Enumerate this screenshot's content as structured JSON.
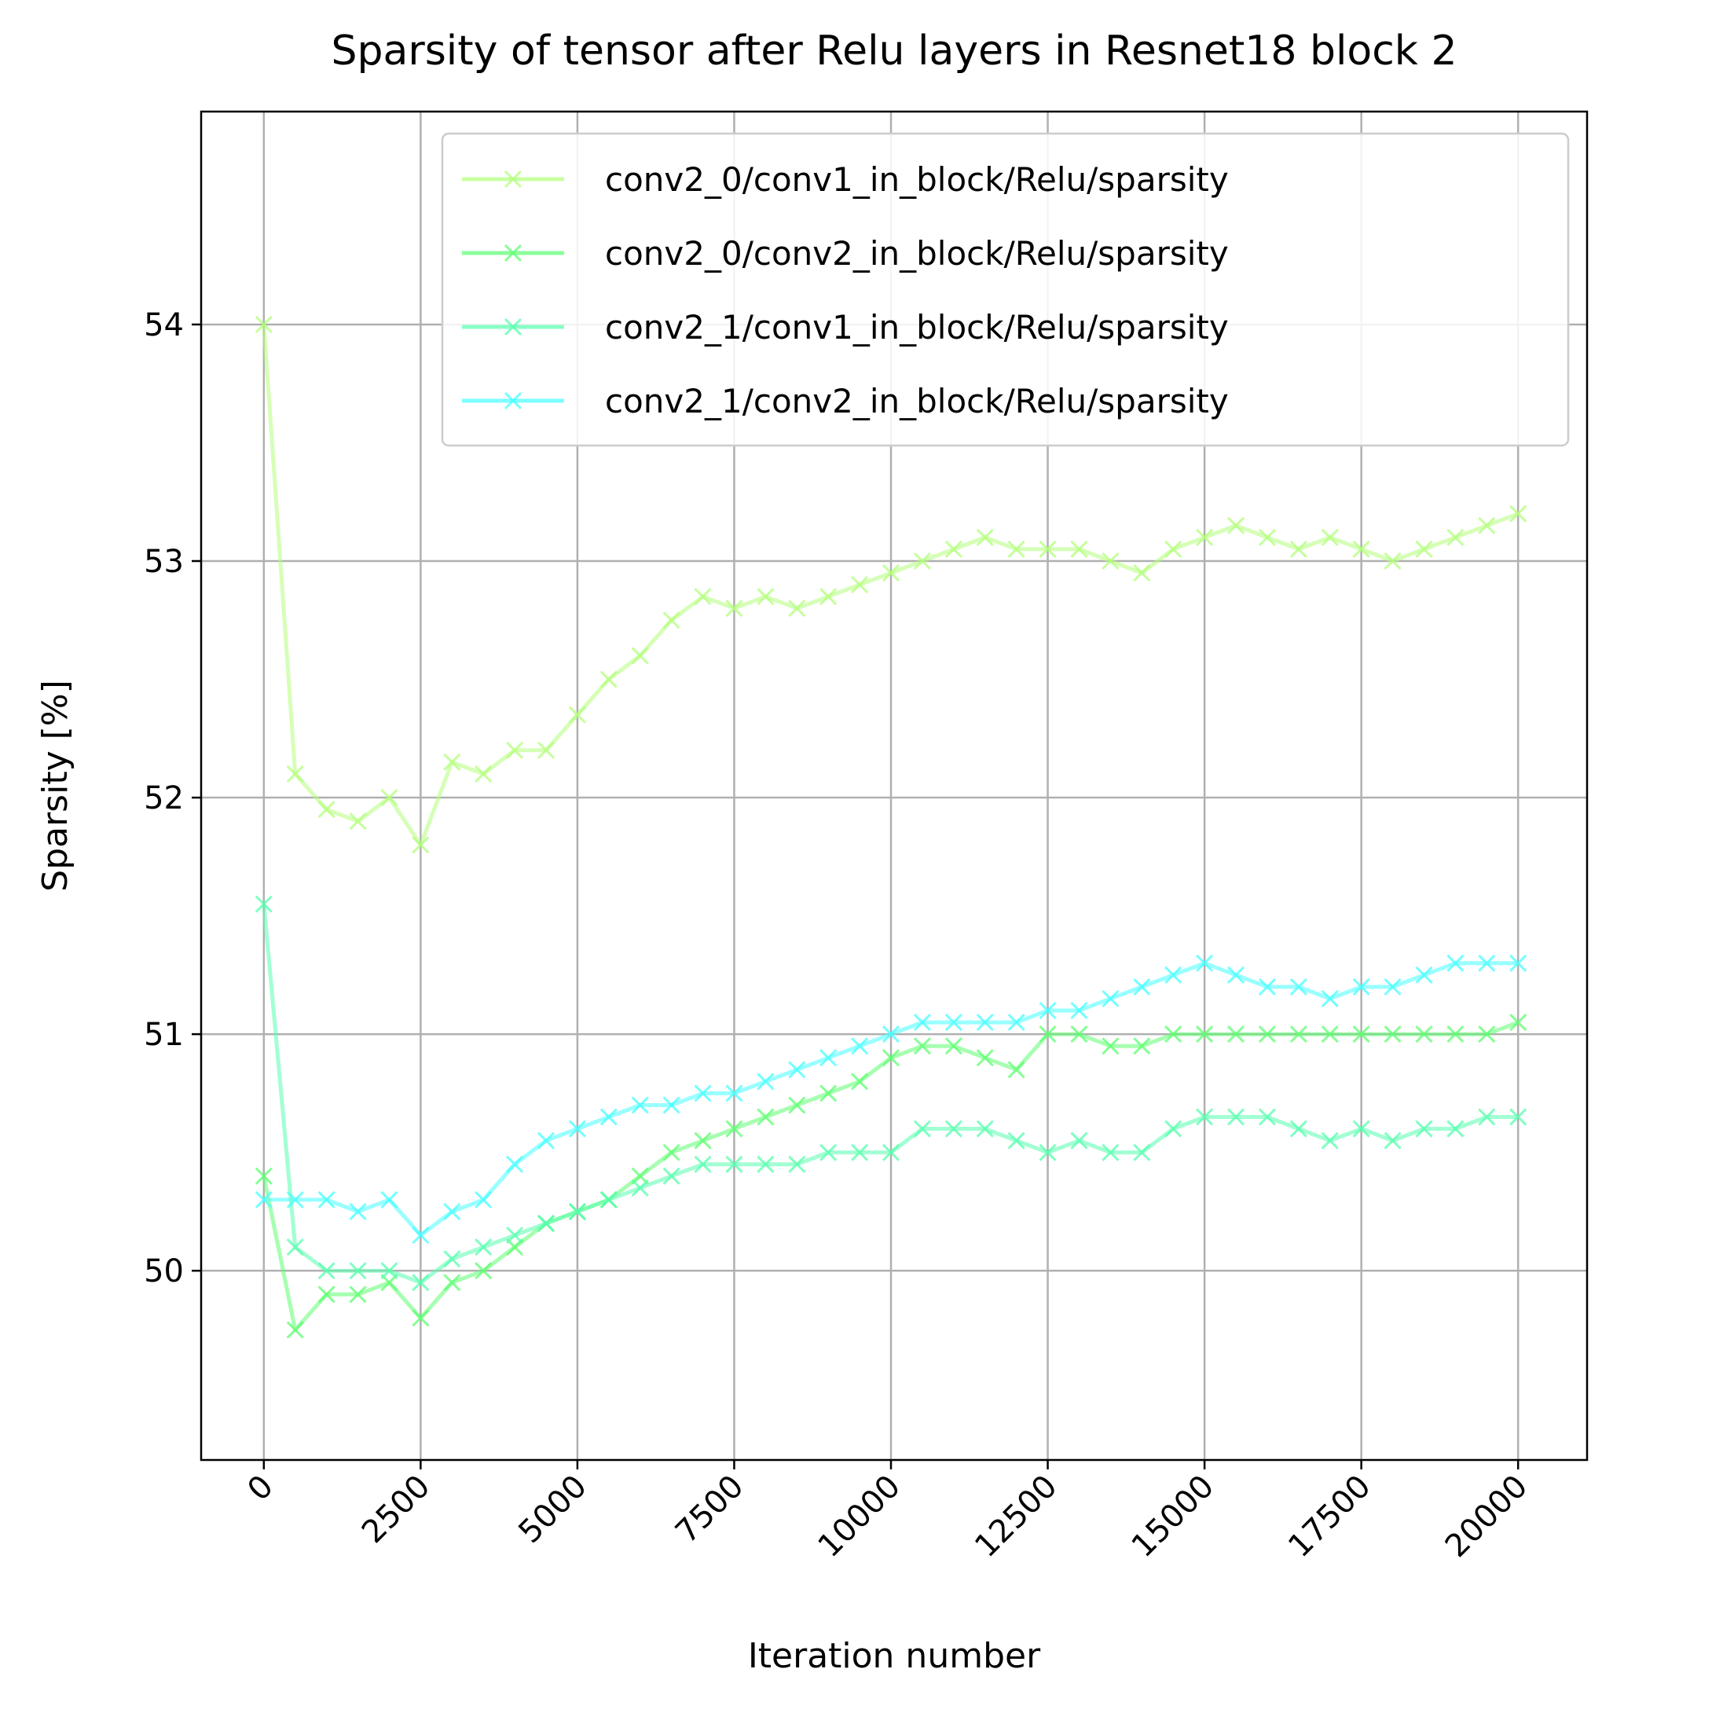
{
  "chart_data": {
    "type": "line",
    "title": "Sparsity of tensor after Relu layers in Resnet18 block 2",
    "xlabel": "Iteration number",
    "ylabel": "Sparsity [%]",
    "xlim": [
      -1000,
      21100
    ],
    "ylim": [
      49.2,
      54.9
    ],
    "xticks": [
      0,
      2500,
      5000,
      7500,
      10000,
      12500,
      15000,
      17500,
      20000
    ],
    "xtick_labels": [
      "0",
      "2500",
      "5000",
      "7500",
      "10000",
      "12500",
      "15000",
      "17500",
      "20000"
    ],
    "yticks": [
      50,
      51,
      52,
      53,
      54
    ],
    "ytick_labels": [
      "50",
      "51",
      "52",
      "53",
      "54"
    ],
    "grid": true,
    "legend_position": "top-right",
    "x": [
      0,
      500,
      1000,
      1500,
      2000,
      2500,
      3000,
      3500,
      4000,
      4500,
      5000,
      5500,
      6000,
      6500,
      7000,
      7500,
      8000,
      8500,
      9000,
      9500,
      10000,
      10500,
      11000,
      11500,
      12000,
      12500,
      13000,
      13500,
      14000,
      14500,
      15000,
      15500,
      16000,
      16500,
      17000,
      17500,
      18000,
      18500,
      19000,
      19500,
      20000
    ],
    "series": [
      {
        "name": "conv2_0/conv1_in_block/Relu/sparsity",
        "color": "#b2ff7a",
        "values": [
          54.0,
          52.1,
          51.95,
          51.9,
          52.0,
          51.8,
          52.15,
          52.1,
          52.2,
          52.2,
          52.35,
          52.5,
          52.6,
          52.75,
          52.85,
          52.8,
          52.85,
          52.8,
          52.85,
          52.9,
          52.95,
          53.0,
          53.05,
          53.1,
          53.05,
          53.05,
          53.05,
          53.0,
          52.95,
          53.05,
          53.1,
          53.15,
          53.1,
          53.05,
          53.1,
          53.05,
          53.0,
          53.05,
          53.1,
          53.15,
          53.2
        ]
      },
      {
        "name": "conv2_0/conv2_in_block/Relu/sparsity",
        "color": "#5cff70",
        "values": [
          50.4,
          49.75,
          49.9,
          49.9,
          49.95,
          49.8,
          49.95,
          50.0,
          50.1,
          50.2,
          50.25,
          50.3,
          50.4,
          50.5,
          50.55,
          50.6,
          50.65,
          50.7,
          50.75,
          50.8,
          50.9,
          50.95,
          50.95,
          50.9,
          50.85,
          51.0,
          51.0,
          50.95,
          50.95,
          51.0,
          51.0,
          51.0,
          51.0,
          51.0,
          51.0,
          51.0,
          51.0,
          51.0,
          51.0,
          51.0,
          51.05
        ]
      },
      {
        "name": "conv2_1/conv1_in_block/Relu/sparsity",
        "color": "#56ffae",
        "values": [
          51.55,
          50.1,
          50.0,
          50.0,
          50.0,
          49.95,
          50.05,
          50.1,
          50.15,
          50.2,
          50.25,
          50.3,
          50.35,
          50.4,
          50.45,
          50.45,
          50.45,
          50.45,
          50.5,
          50.5,
          50.5,
          50.6,
          50.6,
          50.6,
          50.55,
          50.5,
          50.55,
          50.5,
          50.5,
          50.6,
          50.65,
          50.65,
          50.65,
          50.6,
          50.55,
          50.6,
          50.55,
          50.6,
          50.6,
          50.65,
          50.65
        ]
      },
      {
        "name": "conv2_1/conv2_in_block/Relu/sparsity",
        "color": "#45ffff",
        "values": [
          50.3,
          50.3,
          50.3,
          50.25,
          50.3,
          50.15,
          50.25,
          50.3,
          50.45,
          50.55,
          50.6,
          50.65,
          50.7,
          50.7,
          50.75,
          50.75,
          50.8,
          50.85,
          50.9,
          50.95,
          51.0,
          51.05,
          51.05,
          51.05,
          51.05,
          51.1,
          51.1,
          51.15,
          51.2,
          51.25,
          51.3,
          51.25,
          51.2,
          51.2,
          51.15,
          51.2,
          51.2,
          51.25,
          51.3,
          51.3,
          51.3
        ]
      }
    ]
  }
}
